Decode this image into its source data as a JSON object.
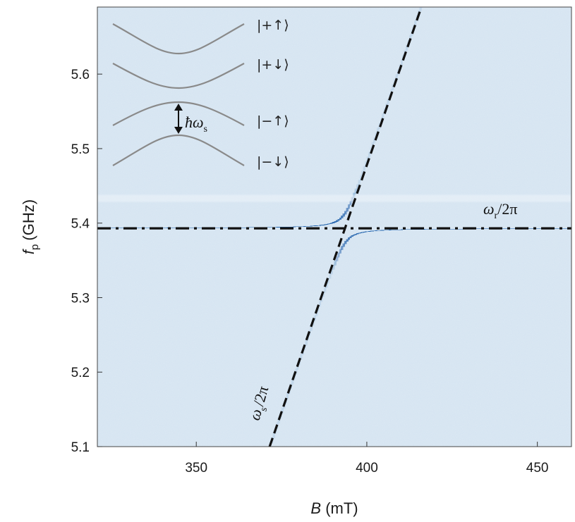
{
  "chart_data": {
    "type": "heatmap",
    "xlabel_var": "B",
    "xlabel_unit": "(mT)",
    "ylabel_var": "f",
    "ylabel_sub": "p",
    "ylabel_unit": "(GHz)",
    "xlim": [
      321,
      460
    ],
    "ylim": [
      5.1,
      5.69
    ],
    "x_ticks": [
      350,
      400,
      450
    ],
    "y_ticks": [
      5.1,
      5.2,
      5.3,
      5.4,
      5.5,
      5.6
    ],
    "y_tick_labels": [
      "5.1",
      "5.2",
      "5.3",
      "5.4",
      "5.5",
      "5.6"
    ],
    "resonator_frequency": 5.393,
    "coupling_g": 0.02,
    "spin_line": {
      "x": [
        371.5,
        416
      ],
      "y": [
        5.1,
        5.69
      ]
    },
    "colors": {
      "background": "#dce9f4",
      "peak": "#0f56a6",
      "ink": "#111111",
      "inset": "#8a8a8a"
    },
    "annotations": {
      "resonator": {
        "base": "ω",
        "sub": "r",
        "tail": "/2π"
      },
      "spin": {
        "base": "ω",
        "sub": "s",
        "tail": "/2π"
      }
    },
    "inset": {
      "splitting": {
        "prefix": "ħω",
        "sub": "s"
      },
      "levels": [
        {
          "label": "|+↑⟩",
          "shape": "lower"
        },
        {
          "label": "|+↓⟩",
          "shape": "lower"
        },
        {
          "label": "|−↑⟩",
          "shape": "upper"
        },
        {
          "label": "|−↓⟩",
          "shape": "upper"
        }
      ]
    }
  }
}
